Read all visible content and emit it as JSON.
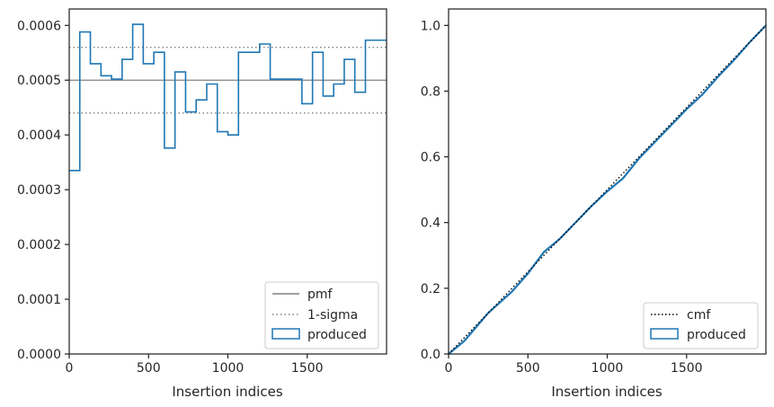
{
  "chart_data": [
    {
      "type": "histogram-step",
      "xlabel": "Insertion indices",
      "ylabel": "",
      "xlim": [
        0,
        2000
      ],
      "ylim": [
        0,
        0.00063
      ],
      "xticks": [
        0,
        500,
        1000,
        1500
      ],
      "yticks": [
        0.0,
        0.0001,
        0.0002,
        0.0003,
        0.0004,
        0.0005,
        0.0006
      ],
      "ytick_labels": [
        "0.0000",
        "0.0001",
        "0.0002",
        "0.0003",
        "0.0004",
        "0.0005",
        "0.0006"
      ],
      "grid": false,
      "legend": {
        "placement": "lower-right",
        "entries": [
          {
            "label": "pmf",
            "style": "solid",
            "color": "#808080"
          },
          {
            "label": "1-sigma",
            "style": "dotted",
            "color": "#808080"
          },
          {
            "label": "produced",
            "style": "box",
            "color": "#1f77b4"
          }
        ]
      },
      "pmf": 0.0005,
      "sigma_band": [
        0.00044,
        0.00056
      ],
      "bin_width": 66.67,
      "values": [
        0.000335,
        0.000588,
        0.00053,
        0.000508,
        0.000502,
        0.000538,
        0.000602,
        0.00053,
        0.000551,
        0.000376,
        0.000515,
        0.000442,
        0.000464,
        0.000493,
        0.000406,
        0.0004,
        0.000551,
        0.000551,
        0.000566,
        0.000502,
        0.000502,
        0.000502,
        0.000457,
        0.000551,
        0.000471,
        0.000493,
        0.000538,
        0.000478,
        0.000573,
        0.000573
      ]
    },
    {
      "type": "line",
      "xlabel": "Insertion indices",
      "ylabel": "",
      "xlim": [
        0,
        2000
      ],
      "ylim": [
        0,
        1.05
      ],
      "xticks": [
        0,
        500,
        1000,
        1500
      ],
      "yticks": [
        0.0,
        0.2,
        0.4,
        0.6,
        0.8,
        1.0
      ],
      "ytick_labels": [
        "0.0",
        "0.2",
        "0.4",
        "0.6",
        "0.8",
        "1.0"
      ],
      "grid": false,
      "legend": {
        "placement": "lower-right",
        "entries": [
          {
            "label": "cmf",
            "style": "dotted",
            "color": "#000000"
          },
          {
            "label": "produced",
            "style": "box",
            "color": "#1f77b4"
          }
        ]
      },
      "cmf": {
        "x": [
          0,
          2000
        ],
        "y": [
          0,
          1
        ]
      },
      "produced": {
        "x": [
          0,
          100,
          250,
          400,
          500,
          600,
          700,
          800,
          900,
          1000,
          1100,
          1200,
          1300,
          1400,
          1500,
          1600,
          1700,
          1800,
          1900,
          2000
        ],
        "y": [
          0.0,
          0.04,
          0.125,
          0.19,
          0.245,
          0.31,
          0.35,
          0.4,
          0.45,
          0.495,
          0.535,
          0.595,
          0.645,
          0.695,
          0.745,
          0.79,
          0.845,
          0.895,
          0.95,
          1.0
        ]
      }
    }
  ],
  "colors": {
    "produced": "#1f77b4",
    "reference": "#808080",
    "cmf": "#000000",
    "axes": "#262626"
  }
}
